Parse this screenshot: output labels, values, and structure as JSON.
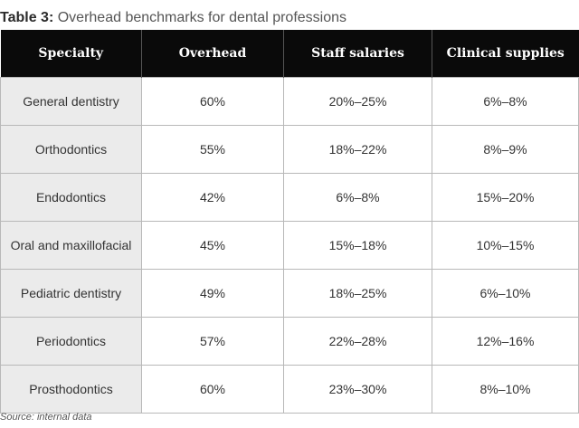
{
  "title": {
    "prefix": "Table 3:",
    "text": "Overhead benchmarks for dental professions"
  },
  "table": {
    "headers": [
      "Specialty",
      "Overhead",
      "Staff salaries",
      "Clinical supplies"
    ],
    "rows": [
      [
        "General dentistry",
        "60%",
        "20%–25%",
        "6%–8%"
      ],
      [
        "Orthodontics",
        "55%",
        "18%–22%",
        "8%–9%"
      ],
      [
        "Endodontics",
        "42%",
        "6%–8%",
        "15%–20%"
      ],
      [
        "Oral and maxillofacial",
        "45%",
        "15%–18%",
        "10%–15%"
      ],
      [
        "Pediatric dentistry",
        "49%",
        "18%–25%",
        "6%–10%"
      ],
      [
        "Periodontics",
        "57%",
        "22%–28%",
        "12%–16%"
      ],
      [
        "Prosthodontics",
        "60%",
        "23%–30%",
        "8%–10%"
      ]
    ]
  },
  "source": "Source: internal data",
  "colors": {
    "header_background": "#0a0a0a",
    "header_text": "#ffffff",
    "first_column_background": "#ebebeb",
    "border": "#b8b8b8"
  }
}
